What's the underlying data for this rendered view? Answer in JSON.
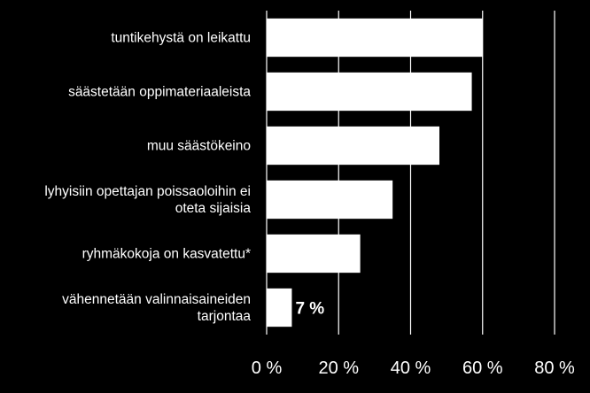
{
  "chart_data": {
    "type": "bar",
    "orientation": "horizontal",
    "title": "",
    "xlabel": "",
    "ylabel": "",
    "categories": [
      [
        "tuntikehystä on leikattu"
      ],
      [
        "säästetään oppimateriaaleista"
      ],
      [
        "muu säästökeino"
      ],
      [
        "lyhyisiin opettajan poissaoloihin ei",
        "oteta sijaisia"
      ],
      [
        "ryhmäkokoja on kasvatettu*"
      ],
      [
        "vähennetään valinnaisaineiden",
        "tarjontaa"
      ]
    ],
    "values": [
      60,
      57,
      48,
      35,
      26,
      7
    ],
    "data_labels": [
      "",
      "",
      "",
      "",
      "",
      "7 %"
    ],
    "xlim": [
      0,
      80
    ],
    "xticks": [
      0,
      20,
      40,
      60,
      80
    ],
    "xtick_labels": [
      "0 %",
      "20 %",
      "40 %",
      "60 %",
      "80 %"
    ],
    "grid": true,
    "legend": "none",
    "colors": {
      "background": "#000000",
      "bar": "#ffffff",
      "text": "#ffffff",
      "grid": "#ffffff"
    }
  }
}
